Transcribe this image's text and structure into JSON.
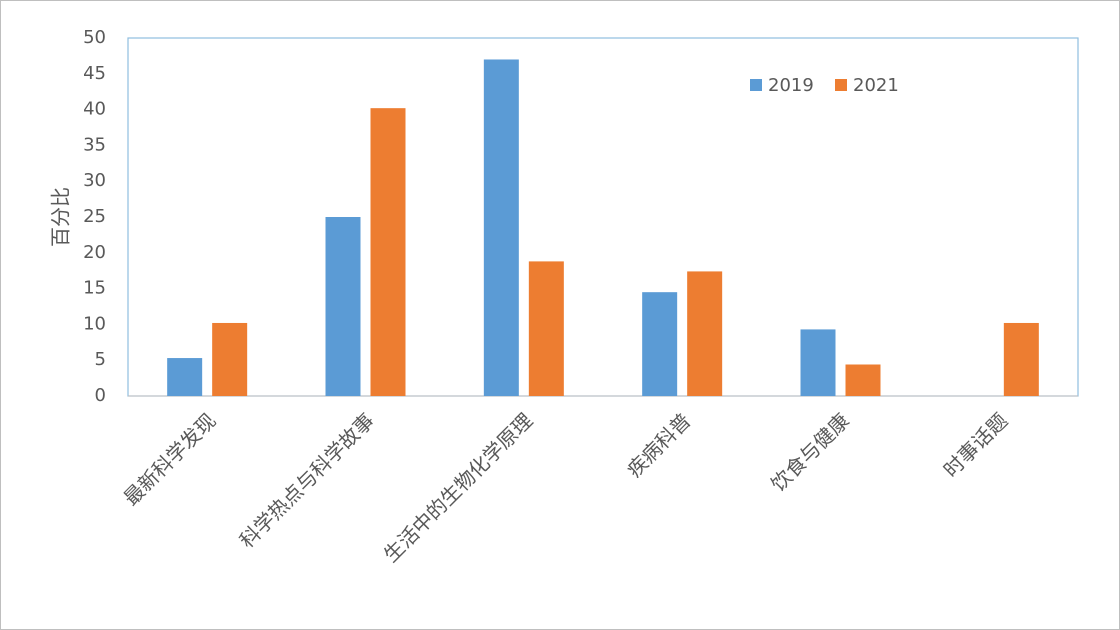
{
  "chart_data": {
    "type": "bar",
    "y_label": "百分比",
    "categories": [
      "最新科学发现",
      "科学热点与科学故事",
      "生活中的生物化学原理",
      "疾病科普",
      "饮食与健康",
      "时事话题"
    ],
    "series": [
      {
        "name": "2019",
        "color": "#5b9bd5",
        "values": [
          5.3,
          25,
          47,
          14.5,
          9.3,
          0
        ]
      },
      {
        "name": "2021",
        "color": "#ed7d31",
        "values": [
          10.2,
          40.2,
          18.8,
          17.4,
          4.4,
          10.2
        ]
      }
    ],
    "ylim": [
      0,
      50
    ],
    "yticks": [
      0,
      5,
      10,
      15,
      20,
      25,
      30,
      35,
      40,
      45,
      50
    ],
    "grid": false,
    "legend": "top-right"
  }
}
